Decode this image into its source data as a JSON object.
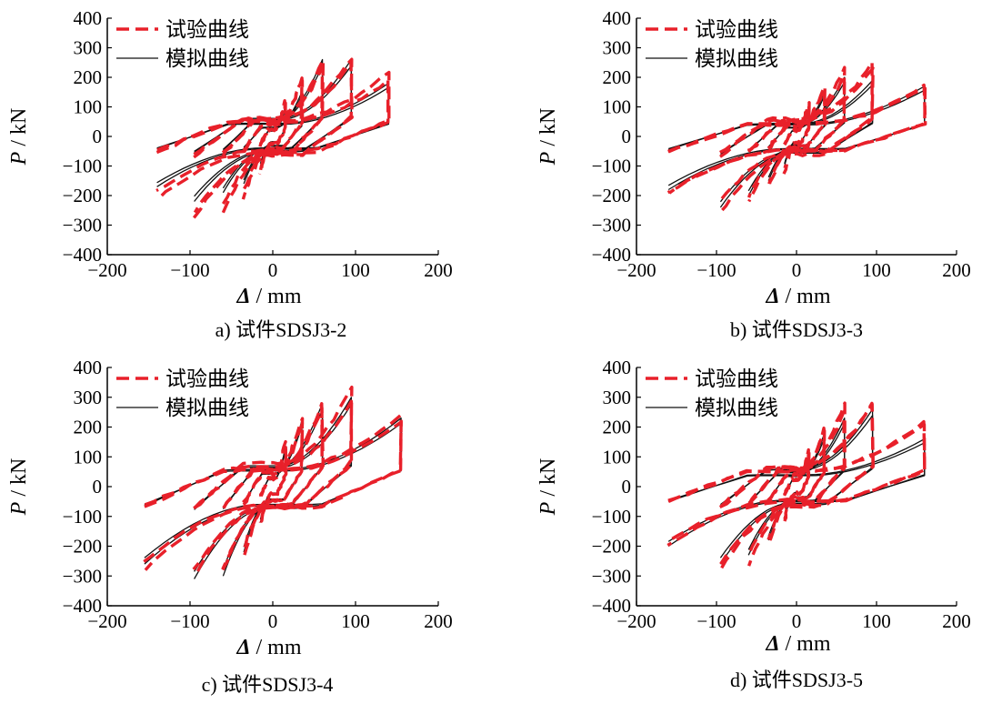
{
  "legend": {
    "test": "试验曲线",
    "sim": "模拟曲线"
  },
  "colors": {
    "test": "#e8202a",
    "sim": "#111111"
  },
  "chart_data": [
    {
      "type": "line",
      "panel": "a",
      "caption": "a)  试件SDSJ3-2",
      "xlabel": {
        "sym": "Δ",
        "unit": " / mm"
      },
      "ylabel": {
        "sym": "P",
        "unit": " / kN"
      },
      "xlim": [
        -200,
        200
      ],
      "ylim": [
        -400,
        400
      ],
      "xticks": [
        "−200",
        "−100",
        "0",
        "100",
        "200"
      ],
      "yticks": [
        "400",
        "300",
        "200",
        "100",
        "0",
        "−100",
        "−200",
        "−300",
        "−400"
      ],
      "legend_position": "top-left",
      "grid": false,
      "series": [
        {
          "name": "试验曲线",
          "style": "dashed",
          "envelope": {
            "x": [
              -140,
              -100,
              -60,
              -35,
              -15,
              0,
              15,
              35,
              60,
              95,
              140
            ],
            "y": [
              -210,
              -270,
              -250,
              -200,
              -120,
              0,
              120,
              200,
              250,
              270,
              210
            ]
          }
        },
        {
          "name": "模拟曲线",
          "style": "solid",
          "envelope": {
            "x": [
              -140,
              -100,
              -60,
              -35,
              -15,
              0,
              15,
              35,
              60,
              95,
              140
            ],
            "y": [
              -170,
              -220,
              -190,
              -160,
              -100,
              0,
              100,
              150,
              260,
              260,
              180
            ]
          }
        }
      ]
    },
    {
      "type": "line",
      "panel": "b",
      "caption": "b)  试件SDSJ3-3",
      "xlabel": {
        "sym": "Δ",
        "unit": " / mm"
      },
      "ylabel": {
        "sym": "P",
        "unit": " / kN"
      },
      "xlim": [
        -200,
        200
      ],
      "ylim": [
        -400,
        400
      ],
      "xticks": [
        "−200",
        "−100",
        "0",
        "100",
        "200"
      ],
      "yticks": [
        "400",
        "300",
        "200",
        "100",
        "0",
        "−100",
        "−200",
        "−300",
        "−400"
      ],
      "legend_position": "top-left",
      "grid": false,
      "series": [
        {
          "name": "试验曲线",
          "style": "dashed",
          "envelope": {
            "x": [
              -160,
              -100,
              -60,
              -35,
              -15,
              0,
              15,
              35,
              60,
              95,
              160
            ],
            "y": [
              -200,
              -250,
              -220,
              -180,
              -120,
              0,
              120,
              180,
              230,
              250,
              170
            ]
          }
        },
        {
          "name": "模拟曲线",
          "style": "solid",
          "envelope": {
            "x": [
              -160,
              -100,
              -60,
              -35,
              -15,
              0,
              15,
              35,
              60,
              95,
              160
            ],
            "y": [
              -180,
              -240,
              -200,
              -150,
              -100,
              0,
              100,
              150,
              200,
              190,
              170
            ]
          }
        }
      ]
    },
    {
      "type": "line",
      "panel": "c",
      "caption": "c)  试件SDSJ3-4",
      "xlabel": {
        "sym": "Δ",
        "unit": " / mm"
      },
      "ylabel": {
        "sym": "P",
        "unit": " / kN"
      },
      "xlim": [
        -200,
        200
      ],
      "ylim": [
        -400,
        400
      ],
      "xticks": [
        "−200",
        "−100",
        "0",
        "100",
        "200"
      ],
      "yticks": [
        "400",
        "300",
        "200",
        "100",
        "0",
        "−100",
        "−200",
        "−300",
        "−400"
      ],
      "legend_position": "top-left",
      "grid": false,
      "series": [
        {
          "name": "试验曲线",
          "style": "dashed",
          "envelope": {
            "x": [
              -155,
              -100,
              -60,
              -35,
              -15,
              0,
              15,
              35,
              60,
              95,
              155
            ],
            "y": [
              -270,
              -310,
              -290,
              -230,
              -130,
              0,
              150,
              230,
              290,
              320,
              240
            ]
          }
        },
        {
          "name": "模拟曲线",
          "style": "solid",
          "envelope": {
            "x": [
              -155,
              -100,
              -60,
              -35,
              -15,
              0,
              15,
              35,
              60,
              95,
              155
            ],
            "y": [
              -260,
              -310,
              -300,
              -220,
              -120,
              0,
              130,
              220,
              280,
              300,
              230
            ]
          }
        }
      ]
    },
    {
      "type": "line",
      "panel": "d",
      "caption": "d)  试件SDSJ3-5",
      "xlabel": {
        "sym": "Δ",
        "unit": " / mm"
      },
      "ylabel": {
        "sym": "P",
        "unit": " / kN"
      },
      "xlim": [
        -200,
        200
      ],
      "ylim": [
        -400,
        400
      ],
      "xticks": [
        "−200",
        "−100",
        "0",
        "100",
        "200"
      ],
      "yticks": [
        "400",
        "300",
        "200",
        "100",
        "0",
        "−100",
        "−200",
        "−300",
        "−400"
      ],
      "legend_position": "top-left",
      "grid": false,
      "series": [
        {
          "name": "试验曲线",
          "style": "dashed",
          "envelope": {
            "x": [
              -160,
              -100,
              -60,
              -35,
              -15,
              0,
              15,
              35,
              60,
              95,
              160
            ],
            "y": [
              -200,
              -280,
              -260,
              -200,
              -120,
              0,
              130,
              200,
              270,
              290,
              220
            ]
          }
        },
        {
          "name": "模拟曲线",
          "style": "solid",
          "envelope": {
            "x": [
              -160,
              -100,
              -60,
              -35,
              -15,
              0,
              15,
              35,
              60,
              95,
              160
            ],
            "y": [
              -200,
              -260,
              -230,
              -180,
              -110,
              0,
              110,
              180,
              230,
              260,
              160
            ]
          }
        }
      ]
    }
  ]
}
